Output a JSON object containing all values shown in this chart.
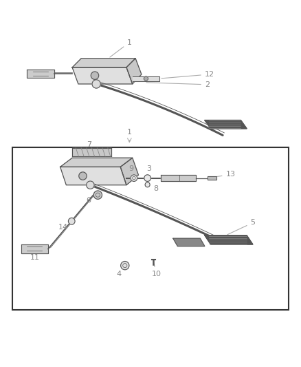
{
  "bg_color": "#ffffff",
  "line_color": "#555555",
  "label_color": "#888888",
  "border_color": "#333333",
  "fig_width": 4.38,
  "fig_height": 5.33
}
